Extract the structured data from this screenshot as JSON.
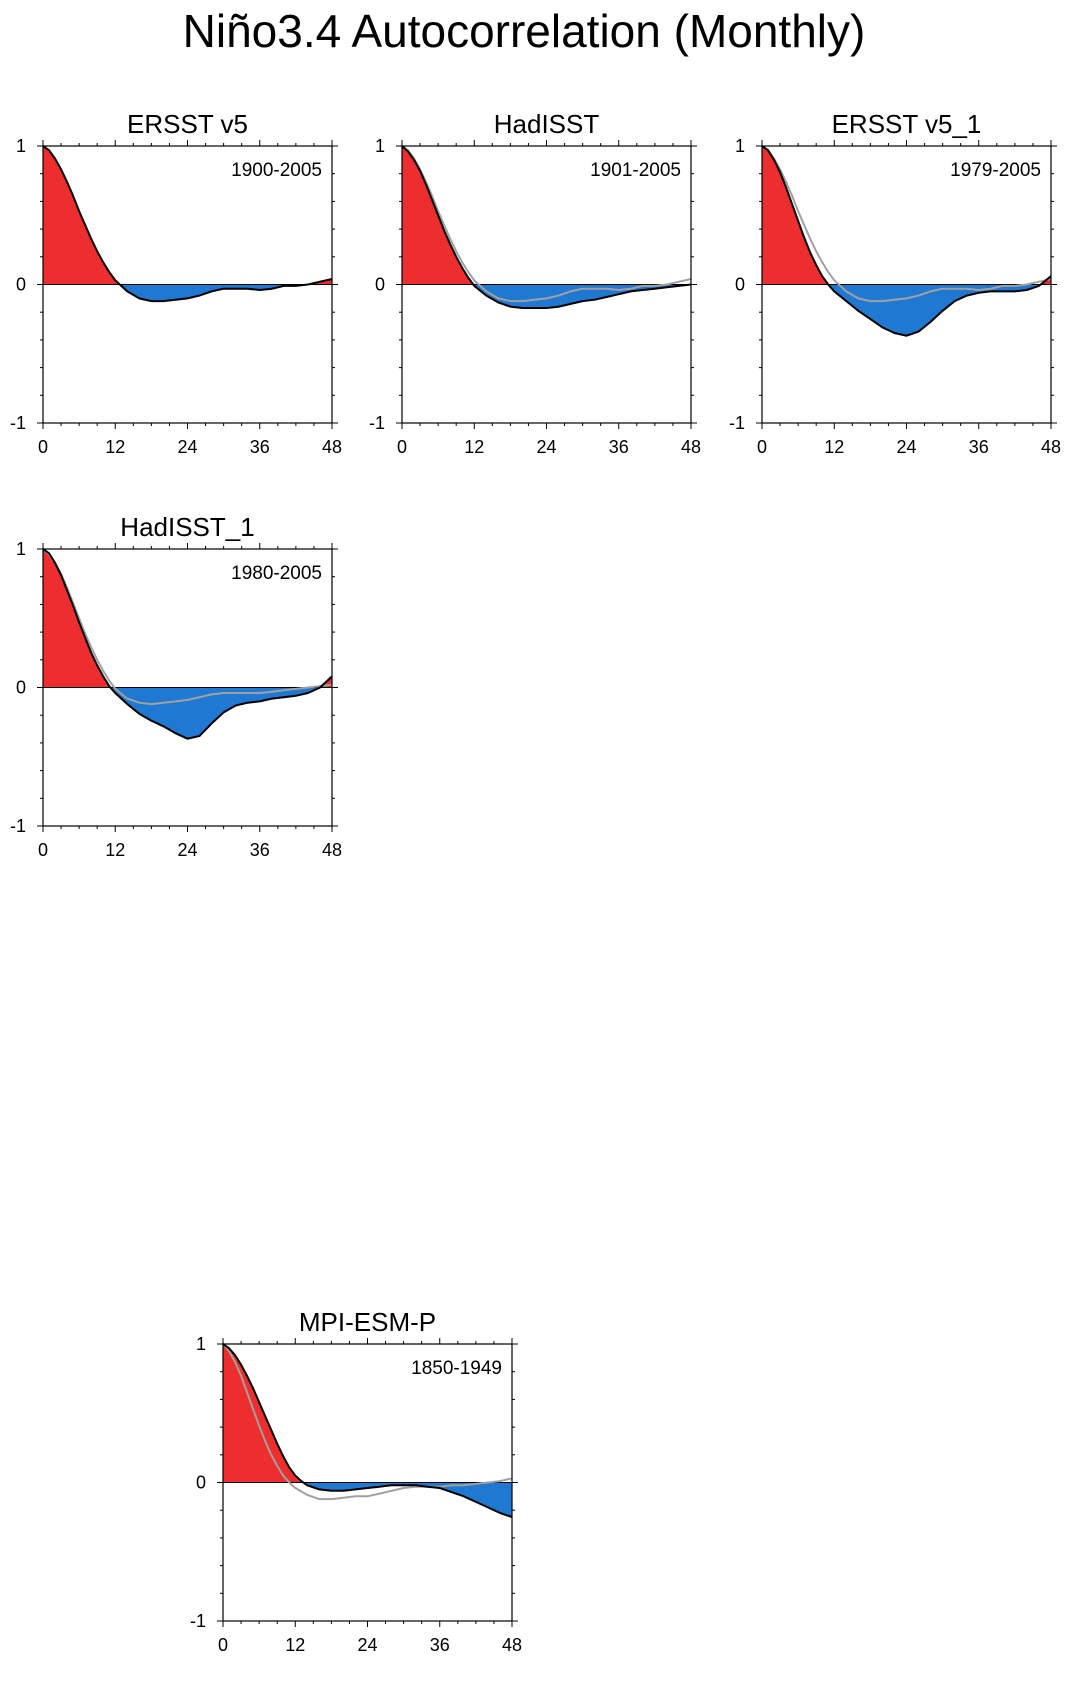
{
  "figure": {
    "title": "Niño3.4 Autocorrelation (Monthly)"
  },
  "colors": {
    "positive_fill": "#ee2e2e",
    "negative_fill": "#1f78d1",
    "model_line": "#000000",
    "reference_line": "#a0a0a0",
    "axis": "#000000"
  },
  "chart_data": [
    {
      "type": "area",
      "title": "ERSST v5",
      "period": "1900-2005",
      "xlabel": "",
      "ylabel": "",
      "xlim": [
        0,
        48
      ],
      "ylim": [
        -1,
        1
      ],
      "xticks": [
        "0",
        "12",
        "24",
        "36",
        "48"
      ],
      "yticks": [
        "1",
        "0",
        "-1"
      ],
      "grid": false,
      "series": [
        {
          "x": [
            0,
            1,
            2,
            3,
            4,
            5,
            6,
            7,
            8,
            9,
            10,
            11,
            12,
            14,
            16,
            18,
            20,
            22,
            24,
            26,
            28,
            30,
            32,
            34,
            36,
            38,
            40,
            42,
            44,
            46,
            48
          ],
          "values": [
            1.0,
            0.97,
            0.91,
            0.83,
            0.74,
            0.64,
            0.53,
            0.43,
            0.33,
            0.24,
            0.16,
            0.09,
            0.03,
            -0.05,
            -0.1,
            -0.12,
            -0.12,
            -0.11,
            -0.1,
            -0.08,
            -0.05,
            -0.03,
            -0.03,
            -0.03,
            -0.04,
            -0.03,
            -0.01,
            -0.01,
            0.0,
            0.02,
            0.04
          ]
        }
      ]
    },
    {
      "type": "area",
      "title": "HadISST",
      "period": "1901-2005",
      "xlabel": "",
      "ylabel": "",
      "xlim": [
        0,
        48
      ],
      "ylim": [
        -1,
        1
      ],
      "xticks": [
        "0",
        "12",
        "24",
        "36",
        "48"
      ],
      "yticks": [
        "1",
        "0",
        "-1"
      ],
      "grid": false,
      "series": [
        {
          "x": [
            0,
            1,
            2,
            3,
            4,
            5,
            6,
            7,
            8,
            9,
            10,
            11,
            12,
            14,
            16,
            18,
            20,
            22,
            24,
            26,
            28,
            30,
            32,
            34,
            36,
            38,
            40,
            42,
            44,
            46,
            48
          ],
          "values": [
            1.0,
            0.96,
            0.9,
            0.82,
            0.72,
            0.61,
            0.5,
            0.39,
            0.29,
            0.2,
            0.12,
            0.05,
            -0.01,
            -0.08,
            -0.13,
            -0.16,
            -0.17,
            -0.17,
            -0.17,
            -0.16,
            -0.14,
            -0.12,
            -0.11,
            -0.09,
            -0.07,
            -0.05,
            -0.04,
            -0.03,
            -0.02,
            -0.01,
            0.0
          ]
        },
        {
          "x": [
            0,
            1,
            2,
            3,
            4,
            5,
            6,
            7,
            8,
            9,
            10,
            11,
            12,
            14,
            16,
            18,
            20,
            22,
            24,
            26,
            28,
            30,
            32,
            34,
            36,
            38,
            40,
            42,
            44,
            46,
            48
          ],
          "values": [
            1.0,
            0.97,
            0.91,
            0.83,
            0.74,
            0.64,
            0.53,
            0.43,
            0.33,
            0.24,
            0.16,
            0.09,
            0.03,
            -0.05,
            -0.1,
            -0.12,
            -0.12,
            -0.11,
            -0.1,
            -0.08,
            -0.05,
            -0.03,
            -0.03,
            -0.03,
            -0.04,
            -0.03,
            -0.01,
            -0.01,
            0.0,
            0.02,
            0.04
          ]
        }
      ]
    },
    {
      "type": "area",
      "title": "ERSST v5_1",
      "period": "1979-2005",
      "xlabel": "",
      "ylabel": "",
      "xlim": [
        0,
        48
      ],
      "ylim": [
        -1,
        1
      ],
      "xticks": [
        "0",
        "12",
        "24",
        "36",
        "48"
      ],
      "yticks": [
        "1",
        "0",
        "-1"
      ],
      "grid": false,
      "series": [
        {
          "x": [
            0,
            1,
            2,
            3,
            4,
            5,
            6,
            7,
            8,
            9,
            10,
            11,
            12,
            14,
            16,
            18,
            20,
            22,
            24,
            26,
            28,
            30,
            32,
            34,
            36,
            38,
            40,
            42,
            44,
            46,
            48
          ],
          "values": [
            1.0,
            0.97,
            0.9,
            0.81,
            0.7,
            0.58,
            0.46,
            0.34,
            0.23,
            0.14,
            0.06,
            0.0,
            -0.05,
            -0.12,
            -0.19,
            -0.25,
            -0.31,
            -0.35,
            -0.37,
            -0.34,
            -0.27,
            -0.19,
            -0.12,
            -0.08,
            -0.06,
            -0.05,
            -0.05,
            -0.05,
            -0.04,
            -0.01,
            0.06
          ]
        },
        {
          "x": [
            0,
            1,
            2,
            3,
            4,
            5,
            6,
            7,
            8,
            9,
            10,
            11,
            12,
            14,
            16,
            18,
            20,
            22,
            24,
            26,
            28,
            30,
            32,
            34,
            36,
            38,
            40,
            42,
            44,
            46,
            48
          ],
          "values": [
            1.0,
            0.97,
            0.91,
            0.83,
            0.74,
            0.64,
            0.53,
            0.43,
            0.33,
            0.24,
            0.16,
            0.09,
            0.03,
            -0.05,
            -0.1,
            -0.12,
            -0.12,
            -0.11,
            -0.1,
            -0.08,
            -0.05,
            -0.03,
            -0.03,
            -0.03,
            -0.04,
            -0.03,
            -0.01,
            -0.01,
            0.0,
            0.02,
            0.04
          ]
        }
      ]
    },
    {
      "type": "area",
      "title": "HadISST_1",
      "period": "1980-2005",
      "xlabel": "",
      "ylabel": "",
      "xlim": [
        0,
        48
      ],
      "ylim": [
        -1,
        1
      ],
      "xticks": [
        "0",
        "12",
        "24",
        "36",
        "48"
      ],
      "yticks": [
        "1",
        "0",
        "-1"
      ],
      "grid": false,
      "series": [
        {
          "x": [
            0,
            1,
            2,
            3,
            4,
            5,
            6,
            7,
            8,
            9,
            10,
            11,
            12,
            14,
            16,
            18,
            20,
            22,
            24,
            26,
            28,
            30,
            32,
            34,
            36,
            38,
            40,
            42,
            44,
            46,
            48
          ],
          "values": [
            1.0,
            0.97,
            0.9,
            0.81,
            0.7,
            0.59,
            0.47,
            0.36,
            0.25,
            0.16,
            0.08,
            0.01,
            -0.04,
            -0.12,
            -0.19,
            -0.24,
            -0.28,
            -0.33,
            -0.37,
            -0.35,
            -0.26,
            -0.18,
            -0.13,
            -0.11,
            -0.1,
            -0.08,
            -0.07,
            -0.06,
            -0.04,
            0.0,
            0.08
          ]
        },
        {
          "x": [
            0,
            1,
            2,
            3,
            4,
            5,
            6,
            7,
            8,
            9,
            10,
            11,
            12,
            14,
            16,
            18,
            20,
            22,
            24,
            26,
            28,
            30,
            32,
            34,
            36,
            38,
            40,
            42,
            44,
            46,
            48
          ],
          "values": [
            1.0,
            0.96,
            0.9,
            0.82,
            0.72,
            0.61,
            0.5,
            0.39,
            0.29,
            0.2,
            0.12,
            0.05,
            -0.01,
            -0.08,
            -0.11,
            -0.12,
            -0.11,
            -0.1,
            -0.09,
            -0.07,
            -0.05,
            -0.04,
            -0.04,
            -0.04,
            -0.04,
            -0.03,
            -0.02,
            -0.01,
            0.0,
            0.01,
            0.02
          ]
        }
      ]
    },
    {
      "type": "area",
      "title": "MPI-ESM-P",
      "period": "1850-1949",
      "xlabel": "",
      "ylabel": "",
      "xlim": [
        0,
        48
      ],
      "ylim": [
        -1,
        1
      ],
      "xticks": [
        "0",
        "12",
        "24",
        "36",
        "48"
      ],
      "yticks": [
        "1",
        "0",
        "-1"
      ],
      "grid": false,
      "series": [
        {
          "x": [
            0,
            1,
            2,
            3,
            4,
            5,
            6,
            7,
            8,
            9,
            10,
            11,
            12,
            13,
            14,
            16,
            18,
            20,
            22,
            24,
            26,
            28,
            30,
            32,
            34,
            36,
            38,
            40,
            42,
            44,
            46,
            48
          ],
          "values": [
            1.0,
            0.97,
            0.92,
            0.85,
            0.77,
            0.68,
            0.58,
            0.48,
            0.38,
            0.28,
            0.19,
            0.11,
            0.05,
            0.01,
            -0.02,
            -0.05,
            -0.06,
            -0.06,
            -0.05,
            -0.04,
            -0.03,
            -0.02,
            -0.02,
            -0.02,
            -0.03,
            -0.04,
            -0.07,
            -0.1,
            -0.14,
            -0.18,
            -0.22,
            -0.25
          ]
        },
        {
          "x": [
            0,
            1,
            2,
            3,
            4,
            5,
            6,
            7,
            8,
            9,
            10,
            11,
            12,
            14,
            16,
            18,
            20,
            22,
            24,
            26,
            28,
            30,
            32,
            34,
            36,
            38,
            40,
            42,
            44,
            46,
            48
          ],
          "values": [
            1.0,
            0.95,
            0.87,
            0.77,
            0.65,
            0.53,
            0.41,
            0.3,
            0.2,
            0.12,
            0.05,
            0.0,
            -0.04,
            -0.09,
            -0.12,
            -0.12,
            -0.11,
            -0.1,
            -0.1,
            -0.08,
            -0.06,
            -0.04,
            -0.03,
            -0.03,
            -0.03,
            -0.02,
            -0.02,
            -0.01,
            0.0,
            0.01,
            0.03
          ]
        }
      ]
    }
  ]
}
